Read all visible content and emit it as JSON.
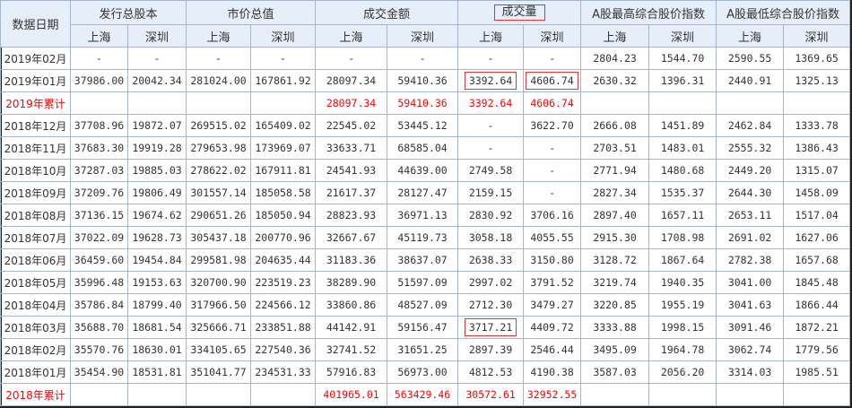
{
  "accent_color": "#ff0000",
  "highlight_border_color": "#e33333",
  "header": {
    "date_label": "数据日期",
    "groups": [
      {
        "label": "发行总股本",
        "highlighted": false
      },
      {
        "label": "市价总值",
        "highlighted": false
      },
      {
        "label": "成交金额",
        "highlighted": false
      },
      {
        "label": "成交量",
        "highlighted": true
      },
      {
        "label": "A股最高综合股价指数",
        "highlighted": false
      },
      {
        "label": "A股最低综合股价指数",
        "highlighted": false
      }
    ],
    "sub": [
      "上海",
      "深圳",
      "上海",
      "深圳",
      "上海",
      "深圳",
      "上海",
      "深圳",
      "上海",
      "深圳",
      "上海",
      "深圳"
    ]
  },
  "rows": [
    {
      "date": "2019年02月",
      "total": false,
      "values": [
        "-",
        "-",
        "-",
        "-",
        "-",
        "-",
        "-",
        "-",
        "2804.23",
        "1544.70",
        "2590.55",
        "1369.65"
      ],
      "highlight": []
    },
    {
      "date": "2019年01月",
      "total": false,
      "values": [
        "37986.00",
        "20042.34",
        "281024.00",
        "167861.92",
        "28097.34",
        "59410.36",
        "3392.64",
        "4606.74",
        "2630.32",
        "1396.31",
        "2440.91",
        "1325.13"
      ],
      "highlight": [
        6,
        7
      ]
    },
    {
      "date": "2019年累计",
      "total": true,
      "values": [
        "",
        "",
        "",
        "",
        "28097.34",
        "59410.36",
        "3392.64",
        "4606.74",
        "",
        "",
        "",
        ""
      ],
      "highlight": []
    },
    {
      "date": "2018年12月",
      "total": false,
      "values": [
        "37708.96",
        "19872.07",
        "269515.02",
        "165409.02",
        "22545.02",
        "53445.12",
        "-",
        "3622.70",
        "2666.08",
        "1451.89",
        "2462.84",
        "1333.78"
      ],
      "highlight": []
    },
    {
      "date": "2018年11月",
      "total": false,
      "values": [
        "37683.30",
        "19919.28",
        "279653.98",
        "173969.07",
        "33633.71",
        "68585.04",
        "-",
        "-",
        "2703.51",
        "1483.01",
        "2555.32",
        "1386.43"
      ],
      "highlight": []
    },
    {
      "date": "2018年10月",
      "total": false,
      "values": [
        "37287.03",
        "19885.03",
        "278622.02",
        "167911.81",
        "24541.93",
        "44639.00",
        "2749.58",
        "-",
        "2771.94",
        "1480.68",
        "2449.20",
        "1315.07"
      ],
      "highlight": []
    },
    {
      "date": "2018年09月",
      "total": false,
      "values": [
        "37209.76",
        "19806.49",
        "301557.14",
        "185058.58",
        "21617.37",
        "28127.47",
        "2159.15",
        "-",
        "2827.34",
        "1535.37",
        "2644.30",
        "1458.09"
      ],
      "highlight": []
    },
    {
      "date": "2018年08月",
      "total": false,
      "values": [
        "37136.15",
        "19674.62",
        "290651.26",
        "185050.94",
        "28823.93",
        "36971.13",
        "2830.92",
        "3706.16",
        "2897.40",
        "1657.11",
        "2653.11",
        "1517.04"
      ],
      "highlight": []
    },
    {
      "date": "2018年07月",
      "total": false,
      "values": [
        "37022.09",
        "19628.73",
        "305437.18",
        "200770.96",
        "32667.67",
        "45119.73",
        "3058.18",
        "4055.55",
        "2915.30",
        "1708.98",
        "2691.02",
        "1627.06"
      ],
      "highlight": []
    },
    {
      "date": "2018年06月",
      "total": false,
      "values": [
        "36459.60",
        "19454.84",
        "299581.98",
        "204635.44",
        "31183.36",
        "38637.07",
        "2638.33",
        "3150.80",
        "3128.72",
        "1867.64",
        "2782.38",
        "1657.68"
      ],
      "highlight": []
    },
    {
      "date": "2018年05月",
      "total": false,
      "values": [
        "35996.48",
        "19153.63",
        "320700.90",
        "223519.23",
        "38289.90",
        "51597.09",
        "2997.02",
        "3791.52",
        "3219.74",
        "1940.35",
        "3041.00",
        "1845.48"
      ],
      "highlight": []
    },
    {
      "date": "2018年04月",
      "total": false,
      "values": [
        "35786.84",
        "18799.40",
        "317966.50",
        "224566.12",
        "33860.86",
        "48527.09",
        "2712.30",
        "3479.27",
        "3220.85",
        "1955.19",
        "3041.63",
        "1866.44"
      ],
      "highlight": []
    },
    {
      "date": "2018年03月",
      "total": false,
      "values": [
        "35688.70",
        "18681.54",
        "325666.71",
        "233851.88",
        "44142.91",
        "59156.47",
        "3717.21",
        "4409.72",
        "3333.88",
        "1998.15",
        "3091.46",
        "1872.21"
      ],
      "highlight": [
        6
      ]
    },
    {
      "date": "2018年02月",
      "total": false,
      "values": [
        "35570.76",
        "18630.01",
        "334105.65",
        "227540.36",
        "32741.52",
        "31651.25",
        "2897.39",
        "2546.44",
        "3495.09",
        "1964.78",
        "3062.74",
        "1779.56"
      ],
      "highlight": []
    },
    {
      "date": "2018年01月",
      "total": false,
      "values": [
        "35454.90",
        "18531.81",
        "351041.77",
        "234531.33",
        "57916.83",
        "56973.00",
        "4812.53",
        "4190.38",
        "3587.03",
        "2056.20",
        "3314.03",
        "1985.51"
      ],
      "highlight": []
    },
    {
      "date": "2018年累计",
      "total": true,
      "values": [
        "",
        "",
        "",
        "",
        "401965.01",
        "563429.46",
        "30572.61",
        "32952.55",
        "",
        "",
        "",
        ""
      ],
      "highlight": []
    }
  ]
}
